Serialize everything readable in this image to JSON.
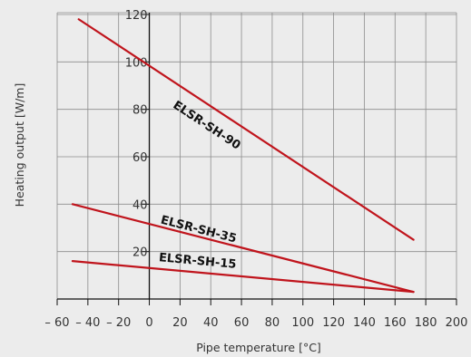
{
  "chart_data": {
    "type": "line",
    "xlabel": "Pipe temperature [°C]",
    "ylabel": "Heating output [W/m]",
    "xlim": [
      -60,
      200
    ],
    "ylim": [
      0,
      120
    ],
    "x_ticks": [
      -60,
      -40,
      -20,
      0,
      20,
      40,
      60,
      80,
      100,
      120,
      140,
      160,
      180,
      200
    ],
    "x_tick_labels": [
      "– 60",
      "– 40",
      "– 20",
      "0",
      "20",
      "40",
      "60",
      "80",
      "100",
      "120",
      "140",
      "160",
      "180",
      "200"
    ],
    "y_ticks": [
      20,
      40,
      60,
      80,
      100,
      120
    ],
    "y_tick_labels": [
      "20",
      "40",
      "60",
      "80",
      "100",
      "120"
    ],
    "grid": true,
    "legend": "none",
    "series": [
      {
        "name": "ELSR-SH-90",
        "x": [
          -46,
          172
        ],
        "y": [
          118,
          25
        ],
        "color": "#c0141c",
        "label_at": [
          15,
          81
        ]
      },
      {
        "name": "ELSR-SH-35",
        "x": [
          -50,
          172
        ],
        "y": [
          40,
          3
        ],
        "color": "#c0141c",
        "label_at": [
          7,
          32
        ]
      },
      {
        "name": "ELSR-SH-15",
        "x": [
          -50,
          172
        ],
        "y": [
          16,
          3
        ],
        "color": "#c0141c",
        "label_at": [
          6,
          16
        ]
      }
    ]
  }
}
